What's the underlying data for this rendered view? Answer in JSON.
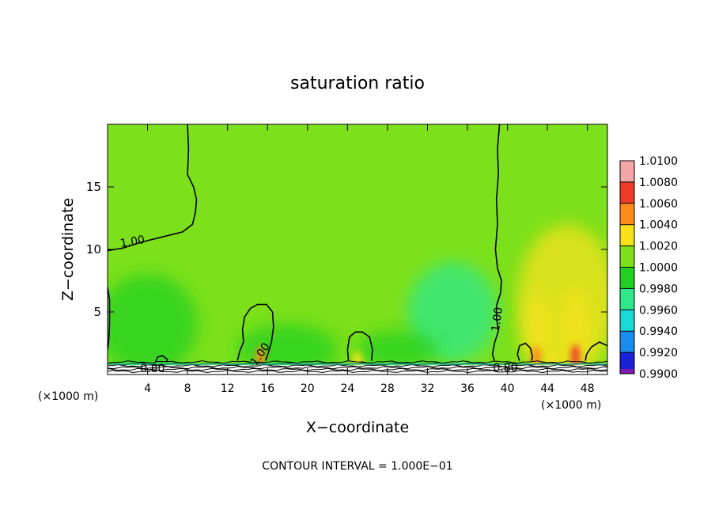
{
  "chart_data": {
    "type": "heatmap",
    "title": "saturation ratio",
    "xlabel": "X−coordinate",
    "ylabel": "Z−coordinate",
    "x_unit_left": "(×1000 m)",
    "x_unit_right": "(×1000 m)",
    "xlim": [
      0,
      50
    ],
    "ylim": [
      0,
      20
    ],
    "xticks": [
      4,
      8,
      12,
      16,
      20,
      24,
      28,
      32,
      36,
      40,
      44,
      48
    ],
    "yticks": [
      5,
      10,
      15
    ],
    "footer": "CONTOUR INTERVAL =  1.000E−01",
    "background_value": 1.0,
    "colorbar": {
      "levels": [
        "1.0100",
        "1.0080",
        "1.0060",
        "1.0040",
        "1.0020",
        "1.0000",
        "0.9980",
        "0.9960",
        "0.9940",
        "0.9920",
        "0.9900"
      ],
      "colors": [
        "#f4a6a6",
        "#f03a2a",
        "#ff8c1a",
        "#f7e21a",
        "#7ce01a",
        "#22d022",
        "#2fe88a",
        "#18d8d8",
        "#1a8cf0",
        "#1a20d8",
        "#7a1ab0"
      ]
    },
    "contour_labels": [
      {
        "text": "1.00",
        "x": 2.5,
        "z": 10.6,
        "angle": -10
      },
      {
        "text": "1.00",
        "x": 15.3,
        "z": 1.6,
        "angle": -55
      },
      {
        "text": "1.00",
        "x": 39.0,
        "z": 4.4,
        "angle": -82
      },
      {
        "text": "0.80",
        "x": 4.5,
        "z": 0.45,
        "angle": 0
      },
      {
        "text": "0.80",
        "x": 39.8,
        "z": 0.5,
        "angle": 0
      }
    ],
    "contours": [
      {
        "level": 1.0,
        "points": [
          [
            8.0,
            20
          ],
          [
            8.1,
            18
          ],
          [
            8.0,
            16
          ],
          [
            8.6,
            15
          ],
          [
            8.9,
            14
          ],
          [
            8.8,
            13
          ],
          [
            8.5,
            12
          ],
          [
            7.5,
            11.4
          ],
          [
            5.5,
            11.0
          ],
          [
            3.5,
            10.6
          ],
          [
            1.5,
            10.1
          ],
          [
            0.0,
            9.9
          ]
        ]
      },
      {
        "level": 1.0,
        "points": [
          [
            0.0,
            7.0
          ],
          [
            0.2,
            6.0
          ],
          [
            0.2,
            4.0
          ],
          [
            0.1,
            2.5
          ],
          [
            0.0,
            2.0
          ]
        ]
      },
      {
        "level": 1.0,
        "points": [
          [
            13.0,
            1.1
          ],
          [
            13.2,
            1.8
          ],
          [
            13.6,
            2.6
          ],
          [
            13.5,
            3.6
          ],
          [
            13.7,
            4.6
          ],
          [
            14.3,
            5.3
          ],
          [
            15.0,
            5.6
          ],
          [
            15.9,
            5.6
          ],
          [
            16.5,
            5.0
          ],
          [
            16.6,
            3.8
          ],
          [
            16.4,
            2.6
          ],
          [
            16.1,
            1.8
          ],
          [
            15.8,
            1.1
          ]
        ]
      },
      {
        "level": 1.0,
        "points": [
          [
            24.1,
            1.1
          ],
          [
            24.0,
            2.0
          ],
          [
            24.2,
            3.0
          ],
          [
            24.8,
            3.4
          ],
          [
            25.5,
            3.4
          ],
          [
            26.2,
            3.0
          ],
          [
            26.5,
            2.0
          ],
          [
            26.4,
            1.1
          ]
        ]
      },
      {
        "level": 1.0,
        "points": [
          [
            39.2,
            20
          ],
          [
            39.0,
            18
          ],
          [
            39.1,
            16
          ],
          [
            38.9,
            14
          ],
          [
            39.0,
            12
          ],
          [
            38.8,
            10
          ],
          [
            39.0,
            8.5
          ],
          [
            39.4,
            7.5
          ],
          [
            39.3,
            6.5
          ],
          [
            38.9,
            5.5
          ],
          [
            38.9,
            4.5
          ],
          [
            39.1,
            3.5
          ],
          [
            38.7,
            2.5
          ],
          [
            38.5,
            1.6
          ],
          [
            38.7,
            1.1
          ]
        ]
      },
      {
        "level": 1.0,
        "points": [
          [
            41.2,
            1.1
          ],
          [
            41.0,
            1.6
          ],
          [
            41.2,
            2.3
          ],
          [
            41.8,
            2.5
          ],
          [
            42.3,
            2.1
          ],
          [
            42.5,
            1.4
          ],
          [
            42.4,
            1.1
          ]
        ]
      },
      {
        "level": 1.0,
        "points": [
          [
            47.8,
            1.1
          ],
          [
            47.9,
            1.6
          ],
          [
            48.4,
            2.2
          ],
          [
            49.2,
            2.6
          ],
          [
            50.0,
            2.3
          ]
        ]
      },
      {
        "level": 1.0,
        "points": [
          [
            4.8,
            1.0
          ],
          [
            5.0,
            1.4
          ],
          [
            5.5,
            1.5
          ],
          [
            6.0,
            1.2
          ],
          [
            5.9,
            1.0
          ]
        ]
      }
    ],
    "hotspots": [
      {
        "x": 15.3,
        "z": 1.4,
        "value": 1.004
      },
      {
        "x": 25.0,
        "z": 1.0,
        "value": 1.003
      },
      {
        "x": 42.9,
        "z": 1.4,
        "value": 1.005
      },
      {
        "x": 46.8,
        "z": 1.5,
        "value": 1.006
      },
      {
        "x": 44.5,
        "z": 1.0,
        "value": 1.003
      }
    ],
    "blobs": [
      {
        "x": 46.0,
        "z": 6.0,
        "rx": 5.0,
        "rz": 6.0,
        "value": 1.002
      },
      {
        "x": 46.8,
        "z": 3.5,
        "rx": 1.5,
        "rz": 3.5,
        "value": 1.003
      },
      {
        "x": 43.0,
        "z": 3.5,
        "rx": 1.5,
        "rz": 3.0,
        "value": 1.003
      },
      {
        "x": 34.5,
        "z": 5.0,
        "rx": 4.5,
        "rz": 4.0,
        "value": 0.9975
      },
      {
        "x": 4.0,
        "z": 4.0,
        "rx": 5.0,
        "rz": 4.0,
        "value": 0.9985
      },
      {
        "x": 18.0,
        "z": 2.0,
        "rx": 5.0,
        "rz": 2.0,
        "value": 0.998
      },
      {
        "x": 29.0,
        "z": 2.0,
        "rx": 4.0,
        "rz": 1.5,
        "value": 0.9985
      }
    ]
  }
}
